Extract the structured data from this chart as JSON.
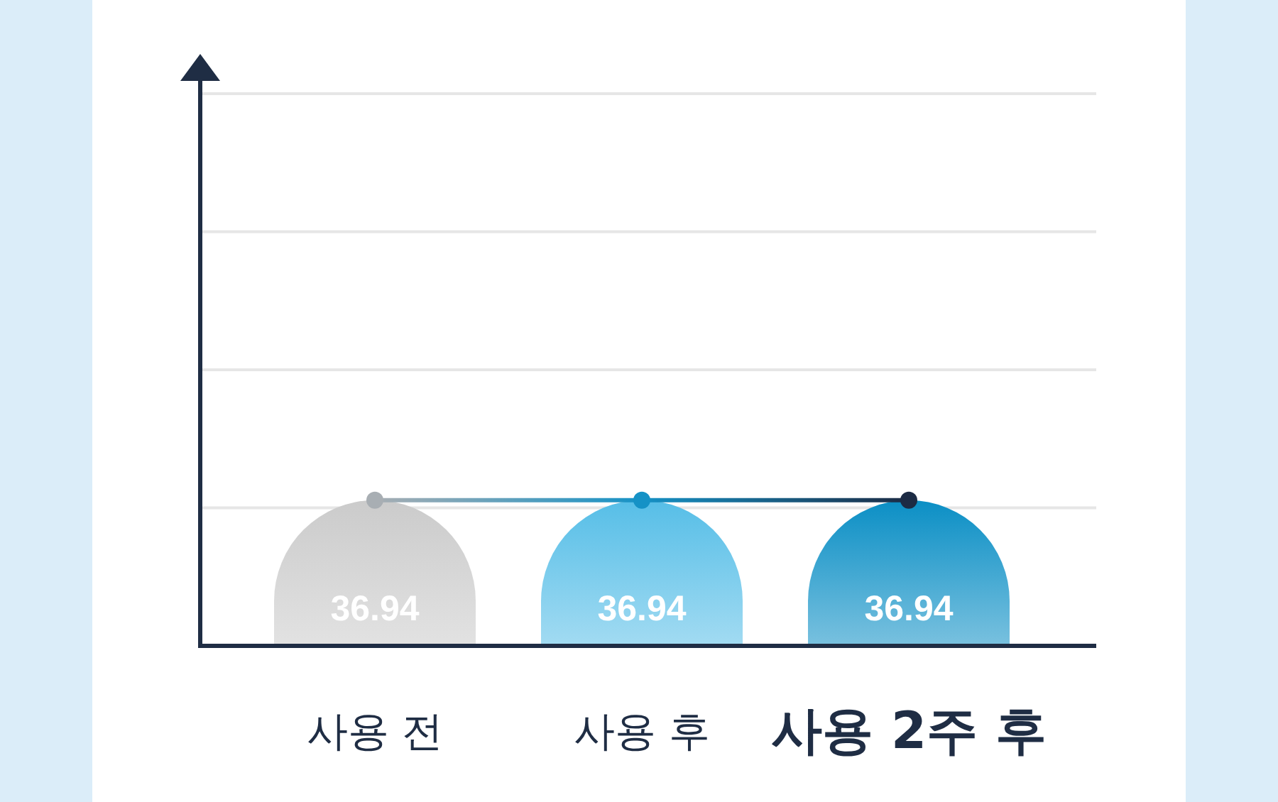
{
  "chart_data": {
    "type": "bar",
    "categories": [
      "사용 전",
      "사용 후",
      "사용 2주 후"
    ],
    "series": [
      {
        "values": [
          36.94,
          36.94,
          36.94
        ],
        "colors": [
          "#cbcbcb",
          "#56bee7",
          "#0b8fc5"
        ],
        "value_labels": [
          "36.94",
          "36.94",
          "36.94"
        ]
      },
      {
        "type": "line",
        "values": [
          36.94,
          36.94,
          36.94
        ],
        "colors": [
          "#a8aeb3",
          "#1592c6",
          "#1c2b44"
        ]
      }
    ],
    "marker": "circle",
    "ylim": [
      0,
      140
    ],
    "grid": "y",
    "tick_labels": "x"
  }
}
